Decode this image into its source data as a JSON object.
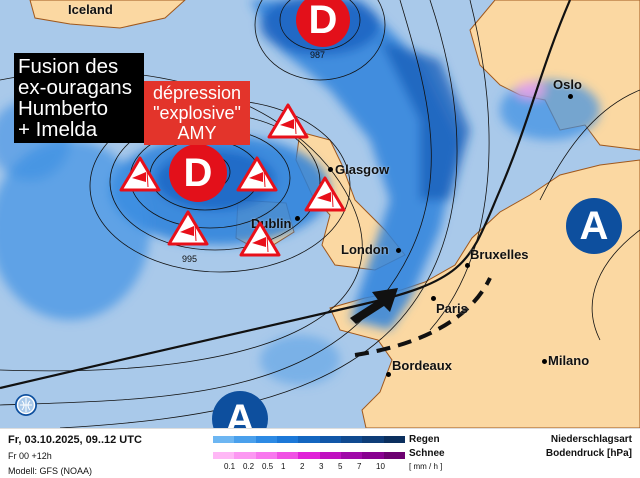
{
  "annotations": {
    "title_lines": [
      "Fusion des",
      "ex-ouragans",
      "Humberto",
      "+ Imelda"
    ],
    "depression_lines": [
      "dépression",
      "\"explosive\"",
      "AMY"
    ]
  },
  "pressure_centers": {
    "low": "D",
    "high": "A"
  },
  "isobar_labels": [
    "987",
    "995"
  ],
  "places": [
    "Iceland",
    "Oslo",
    "Glasgow",
    "Dublin",
    "London",
    "Bruxelles",
    "Paris",
    "Bordeaux",
    "Milano"
  ],
  "icons": [
    "wind-warning-icon",
    "globe-logo-icon",
    "front-arrow-icon"
  ],
  "colors": {
    "sea": "#a9c9ea",
    "land": "#fbd8a2",
    "low": "#e3101a",
    "high": "#0d4f9e",
    "warning": "#e8101a"
  },
  "footer": {
    "datetime": "Fr, 03.10.2025, 09..12 UTC",
    "run": "Fr 00 +12h",
    "model": "Modell: GFS (NOAA)",
    "rain_label": "Regen",
    "snow_label": "Schnee",
    "unit": "[ mm / h ]",
    "ticks": [
      "0.1",
      "0.2",
      "0.5",
      "1",
      "2",
      "3",
      "5",
      "7",
      "10"
    ],
    "type_label": "Niederschlagsart",
    "pressure_label": "Bodendruck [hPa]",
    "rain_colors": [
      "#6db6f2",
      "#4aa0ec",
      "#2d8ae4",
      "#1c78d8",
      "#1466c0",
      "#1157a8",
      "#104a90",
      "#0e3d78",
      "#0b2f5e"
    ],
    "snow_colors": [
      "#ffb8f6",
      "#fc98f2",
      "#f878ee",
      "#f050e4",
      "#e020d8",
      "#c010c0",
      "#a008a8",
      "#880090",
      "#6c0070"
    ]
  }
}
